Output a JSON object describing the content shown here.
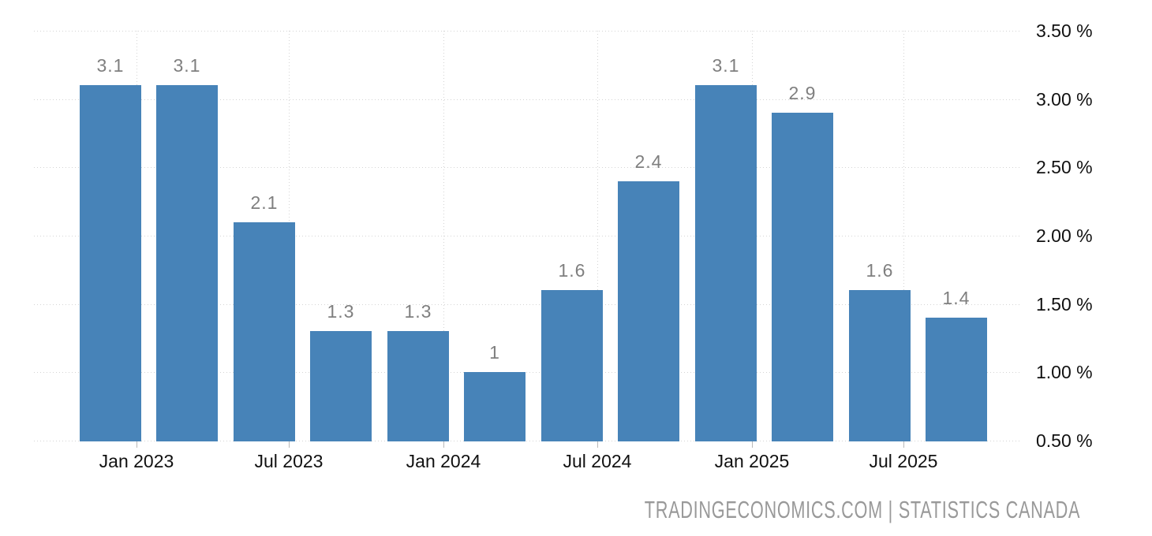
{
  "chart_data": {
    "type": "bar",
    "title": "",
    "xlabel": "",
    "ylabel": "",
    "categories": [
      "Q1 2023",
      "Q2 2023",
      "Q3 2023",
      "Q4 2023",
      "Q1 2024",
      "Q2 2024",
      "Q3 2024",
      "Q4 2024",
      "Q1 2025",
      "Q2 2025",
      "Q3 2025",
      "Q4 2025"
    ],
    "values": [
      3.1,
      3.1,
      2.1,
      1.3,
      1.3,
      1,
      1.6,
      2.4,
      3.1,
      2.9,
      1.6,
      1.4
    ],
    "value_labels": [
      "3.1",
      "3.1",
      "2.1",
      "1.3",
      "1.3",
      "1",
      "1.6",
      "2.4",
      "3.1",
      "2.9",
      "1.6",
      "1.4"
    ],
    "x_tick_labels": [
      "Jan 2023",
      "Jul 2023",
      "Jan 2024",
      "Jul 2024",
      "Jan 2025",
      "Jul 2025"
    ],
    "y_tick_values": [
      0.5,
      1.0,
      1.5,
      2.0,
      2.5,
      3.0,
      3.5
    ],
    "y_tick_labels": [
      "0.50 %",
      "1.00 %",
      "1.50 %",
      "2.00 %",
      "2.50 %",
      "3.00 %",
      "3.50 %"
    ],
    "ylim": [
      0.5,
      3.5
    ],
    "grid": "dotted",
    "legend": "none",
    "source_text": "TRADINGECONOMICS.COM | STATISTICS CANADA",
    "colors": {
      "bar": "#4783b8",
      "gridline": "#d4d4d4",
      "value_label": "#7f7f7f",
      "axis_label": "#111111",
      "tick_mark": "#b8b8b8",
      "watermark": "#999999",
      "background": "#ffffff"
    }
  }
}
